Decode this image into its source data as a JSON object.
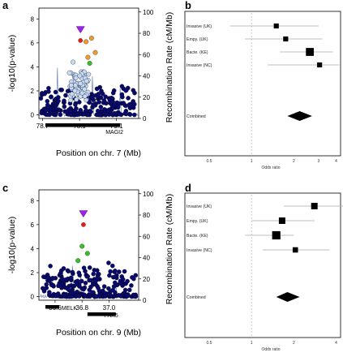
{
  "panels": {
    "a": "a",
    "b": "b",
    "c": "c",
    "d": "d"
  },
  "colors": {
    "background": "#ffffff",
    "navy": "#0a0a6e",
    "light_blue": "#c9dbee",
    "green": "#34c026",
    "orange": "#f29a2e",
    "purple": "#a020f0",
    "red": "#e0201b",
    "recomb_line": "#6a86b6",
    "grey_line": "#aaaaaa"
  },
  "chart_data": [
    {
      "id": "a",
      "type": "scatter",
      "ylabel": "-log10(p-value)",
      "ylabel2": "Recombination Rate (cM/Mb)",
      "xlabel": "Position on chr. 7 (Mb)",
      "xlim": [
        78.68,
        79.22
      ],
      "ylim": [
        -0.3,
        8.9
      ],
      "ylim2": [
        0,
        100
      ],
      "xticks": [
        "78.7",
        "78.9",
        "79.1"
      ],
      "xtick_values": [
        78.7,
        78.9,
        79.1
      ],
      "yticks": [
        "0",
        "2",
        "4",
        "6",
        "8"
      ],
      "ytick_values": [
        0,
        2,
        4,
        6,
        8
      ],
      "yticks2": [
        "0",
        "20",
        "40",
        "60",
        "80",
        "100"
      ],
      "ytick2_values": [
        0,
        20,
        40,
        60,
        80,
        100
      ],
      "lead_snp": {
        "x": 78.905,
        "y": 7.1,
        "label_y": 6.2
      },
      "highlight_points": [
        {
          "x": 78.935,
          "y": 6.1,
          "group": "orange"
        },
        {
          "x": 78.965,
          "y": 6.4,
          "group": "orange"
        },
        {
          "x": 78.985,
          "y": 5.2,
          "group": "orange"
        },
        {
          "x": 78.945,
          "y": 4.8,
          "group": "orange"
        },
        {
          "x": 78.955,
          "y": 4.3,
          "group": "green"
        },
        {
          "x": 78.865,
          "y": 4.4,
          "group": "light"
        },
        {
          "x": 78.845,
          "y": 3.5,
          "group": "light"
        }
      ],
      "recombination_peaks": [
        {
          "x": 78.78,
          "rate": 50
        },
        {
          "x": 78.97,
          "rate": 45
        },
        {
          "x": 79.12,
          "rate": 30
        }
      ],
      "genes": [
        {
          "name": "MAGI2",
          "start": 78.69,
          "end": 79.12
        }
      ]
    },
    {
      "id": "b",
      "type": "forest",
      "xlabel": "Odds ratio",
      "xscale": "log",
      "xlim": [
        0.5,
        4.3
      ],
      "xticks": [
        "0.5",
        "1",
        "2",
        "3",
        "4"
      ],
      "xtick_values": [
        0.5,
        1,
        2,
        3,
        4
      ],
      "rows": [
        {
          "label": "Invasive (UK)",
          "or": 1.5,
          "lo": 0.7,
          "hi": 3.0,
          "weight": 0.35
        },
        {
          "label": "Empy. (UK)",
          "or": 1.75,
          "lo": 0.9,
          "hi": 3.2,
          "weight": 0.35
        },
        {
          "label": "Bacte. (KE)",
          "or": 2.6,
          "lo": 1.6,
          "hi": 3.8,
          "weight": 0.75
        },
        {
          "label": "Invasive (NC)",
          "or": 3.05,
          "lo": 1.3,
          "hi": 4.2,
          "weight": 0.35
        }
      ],
      "combined": {
        "label": "Combined",
        "or": 2.2,
        "lo": 1.8,
        "hi": 2.7
      }
    },
    {
      "id": "c",
      "type": "scatter",
      "ylabel": "-log10(p-value)",
      "ylabel2": "Recombination Rate (cM/Mb)",
      "xlabel": "Position on chr. 9 (Mb)",
      "xlim": [
        36.48,
        37.22
      ],
      "ylim": [
        -0.3,
        8.9
      ],
      "ylim2": [
        0,
        100
      ],
      "xticks": [
        "36.6",
        "36.8",
        "37.0"
      ],
      "xtick_values": [
        36.6,
        36.8,
        37.0
      ],
      "yticks": [
        "0",
        "2",
        "4",
        "6",
        "8"
      ],
      "ytick_values": [
        0,
        2,
        4,
        6,
        8
      ],
      "yticks2": [
        "0",
        "20",
        "40",
        "60",
        "80",
        "100"
      ],
      "ytick2_values": [
        0,
        20,
        40,
        60,
        80,
        100
      ],
      "lead_snp": {
        "x": 36.81,
        "y": 6.9,
        "label_y": 6.0
      },
      "highlight_points": [
        {
          "x": 36.8,
          "y": 4.2,
          "group": "green"
        },
        {
          "x": 36.84,
          "y": 3.6,
          "group": "green"
        },
        {
          "x": 36.77,
          "y": 3.0,
          "group": "green"
        }
      ],
      "recombination_peaks": [
        {
          "x": 36.73,
          "rate": 40
        },
        {
          "x": 36.79,
          "rate": 32
        },
        {
          "x": 37.05,
          "rate": 20
        }
      ],
      "genes": [
        {
          "name": "MELK",
          "start": 36.52,
          "end": 36.63
        },
        {
          "name": "PAX5",
          "start": 36.84,
          "end": 37.05
        }
      ]
    },
    {
      "id": "d",
      "type": "forest",
      "xlabel": "Odds ratio",
      "xscale": "log",
      "xlim": [
        0.5,
        4.3
      ],
      "xticks": [
        "0.5",
        "1",
        "2",
        "4"
      ],
      "xtick_values": [
        0.5,
        1,
        2,
        4
      ],
      "rows": [
        {
          "label": "Invasive (UK)",
          "or": 2.8,
          "lo": 1.7,
          "hi": 4.5,
          "weight": 0.55
        },
        {
          "label": "Empy. (UK)",
          "or": 1.65,
          "lo": 1.0,
          "hi": 2.8,
          "weight": 0.55
        },
        {
          "label": "Bacte. (KE)",
          "or": 1.5,
          "lo": 0.9,
          "hi": 2.0,
          "weight": 0.8
        },
        {
          "label": "Invasive (NC)",
          "or": 2.05,
          "lo": 1.2,
          "hi": 3.6,
          "weight": 0.4
        }
      ],
      "combined": {
        "label": "Combined",
        "or": 1.8,
        "lo": 1.5,
        "hi": 2.2
      }
    }
  ]
}
